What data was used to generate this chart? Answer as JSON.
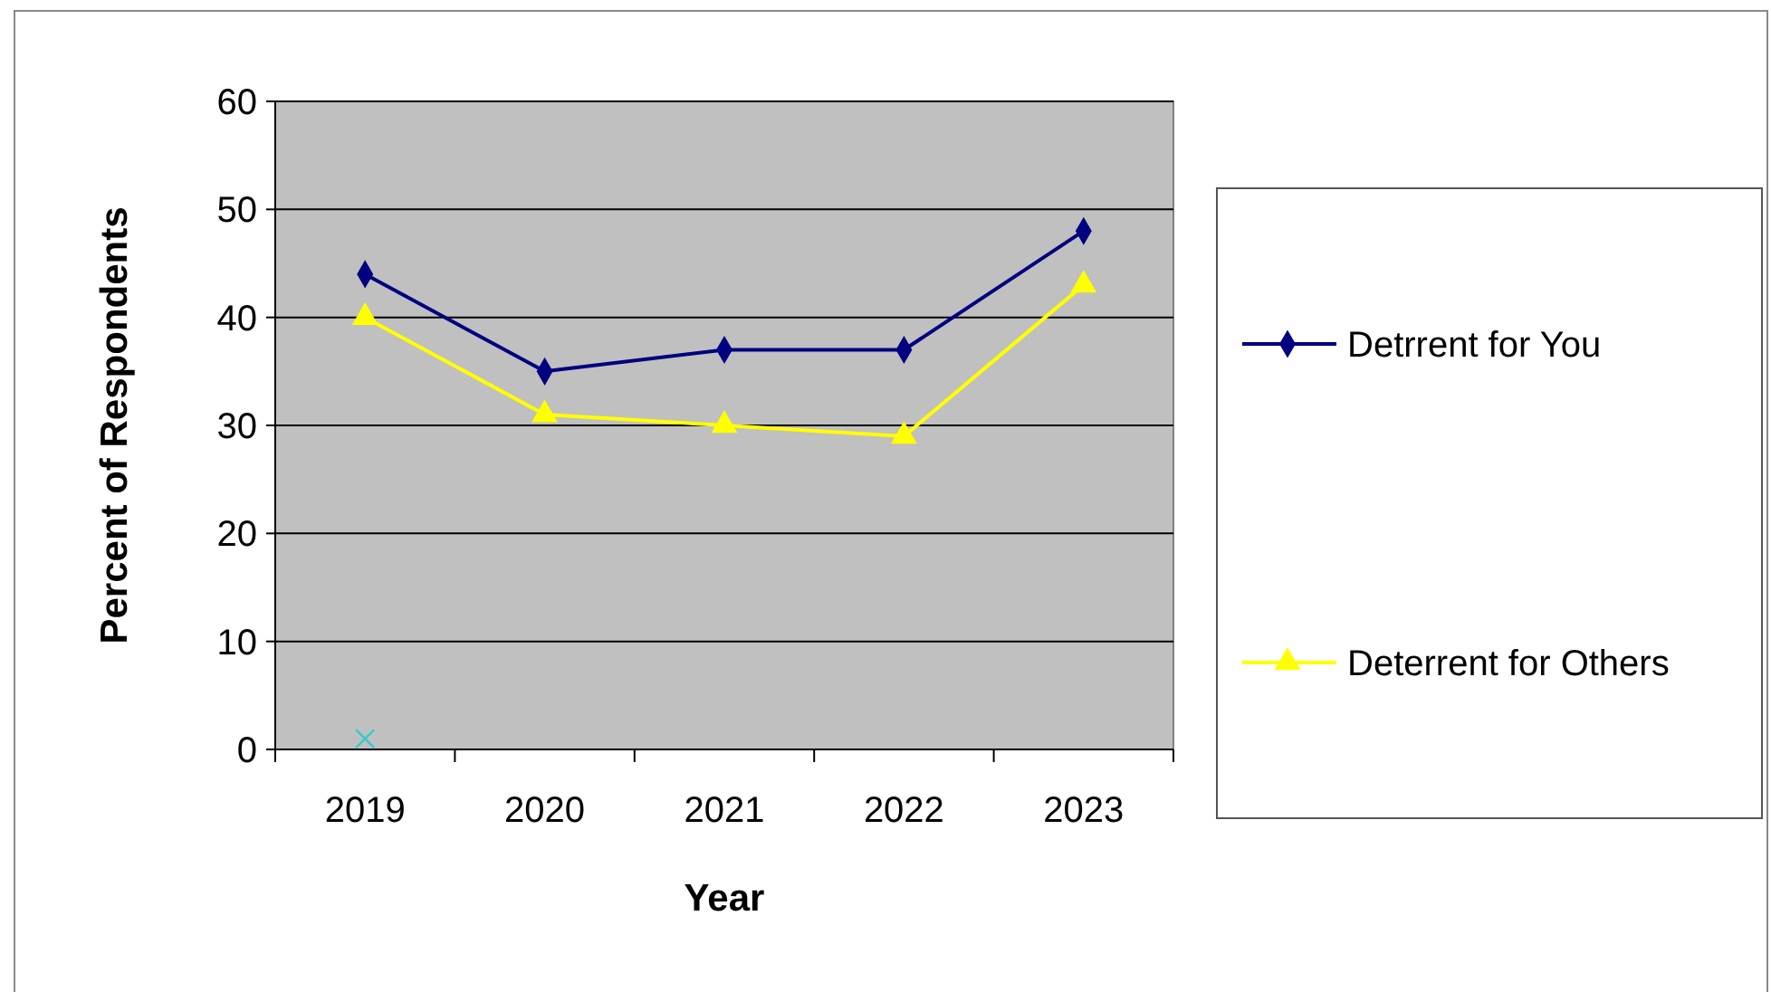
{
  "chart_data": {
    "type": "line",
    "xlabel": "Year",
    "ylabel": "Percent of Respondents",
    "categories": [
      "2019",
      "2020",
      "2021",
      "2022",
      "2023"
    ],
    "ylim": [
      0,
      60
    ],
    "yticks": [
      0,
      10,
      20,
      30,
      40,
      50,
      60
    ],
    "grid": "y",
    "legend": "right",
    "line_style": "solid",
    "series": [
      {
        "name": "Detrrent for You",
        "color": "#000080",
        "marker": "diamond",
        "values": [
          44,
          35,
          37,
          37,
          48
        ]
      },
      {
        "name": "Deterrent for Others",
        "color": "#ffff00",
        "marker": "triangle",
        "values": [
          40,
          31,
          30,
          29,
          43
        ]
      },
      {
        "type": "scatter",
        "color": "#33cccc",
        "marker": "cross",
        "values": [
          1,
          null,
          null,
          null,
          null
        ]
      }
    ]
  }
}
